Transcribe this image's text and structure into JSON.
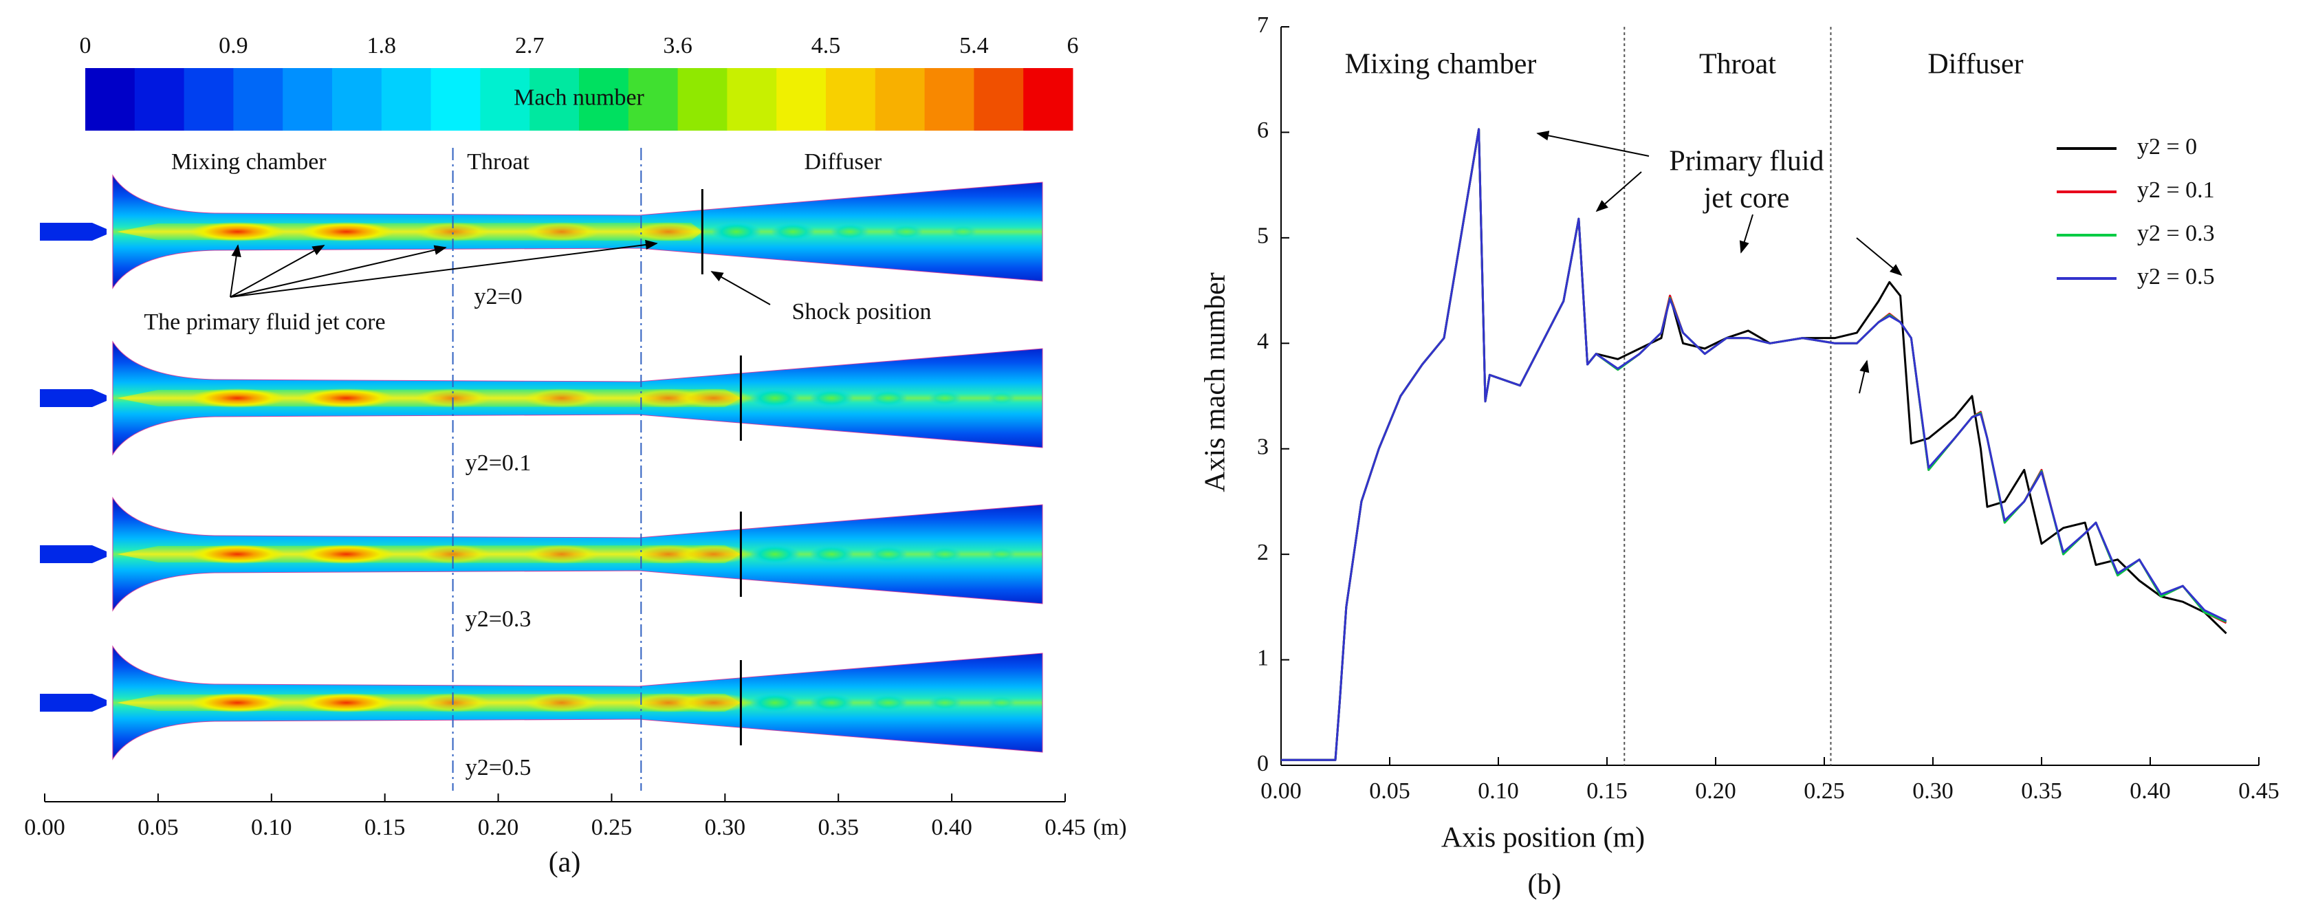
{
  "panel_a": {
    "colorbar": {
      "title": "Mach number",
      "ticks": [
        0,
        0.9,
        1.8,
        2.7,
        3.6,
        4.5,
        5.4,
        6
      ],
      "lim": [
        0,
        6
      ],
      "colors": [
        "#0000c8",
        "#0018e0",
        "#0040f0",
        "#0068f8",
        "#0090ff",
        "#00b0ff",
        "#00d0ff",
        "#00f0ff",
        "#00f0d0",
        "#00e8a0",
        "#00e060",
        "#40e030",
        "#90e800",
        "#c8f000",
        "#f0f000",
        "#f8d000",
        "#f8b000",
        "#f88800",
        "#f05000",
        "#f00000"
      ]
    },
    "region_labels": [
      "Mixing chamber",
      "Throat",
      "Diffuser"
    ],
    "jet_core_label": "The primary fluid jet core",
    "shock_label": "Shock position",
    "case_labels": [
      "y2=0",
      "y2=0.1",
      "y2=0.3",
      "y2=0.5"
    ],
    "axis": {
      "xlim": [
        0,
        0.45
      ],
      "ticks": [
        {
          "value": 0,
          "label": "0.00"
        },
        {
          "value": 0.05,
          "label": "0.05"
        },
        {
          "value": 0.1,
          "label": "0.10"
        },
        {
          "value": 0.15,
          "label": "0.15"
        },
        {
          "value": 0.2,
          "label": "0.20"
        },
        {
          "value": 0.25,
          "label": "0.25"
        },
        {
          "value": 0.3,
          "label": "0.30"
        },
        {
          "value": 0.35,
          "label": "0.35"
        },
        {
          "value": 0.4,
          "label": "0.40"
        },
        {
          "value": 0.45,
          "label": "0.45"
        }
      ],
      "unit": "(m)"
    },
    "caption": "(a)"
  },
  "chart_data": {
    "type": "line",
    "x_label": "Axis position (m)",
    "y_label": "Axis mach number",
    "caption": "(b)",
    "region_labels": [
      "Mixing chamber",
      "Throat",
      "Diffuser"
    ],
    "region_boundaries": [
      0.158,
      0.253
    ],
    "annotation": [
      "Primary fluid",
      "jet core"
    ],
    "xlim": [
      0,
      0.45
    ],
    "ylim": [
      0,
      7
    ],
    "xticks": [
      {
        "value": 0,
        "label": "0.00"
      },
      {
        "value": 0.05,
        "label": "0.05"
      },
      {
        "value": 0.1,
        "label": "0.10"
      },
      {
        "value": 0.15,
        "label": "0.15"
      },
      {
        "value": 0.2,
        "label": "0.20"
      },
      {
        "value": 0.25,
        "label": "0.25"
      },
      {
        "value": 0.3,
        "label": "0.30"
      },
      {
        "value": 0.35,
        "label": "0.35"
      },
      {
        "value": 0.4,
        "label": "0.40"
      },
      {
        "value": 0.45,
        "label": "0.45"
      }
    ],
    "yticks": [
      0,
      1,
      2,
      3,
      4,
      5,
      6,
      7
    ],
    "legend": "upper right",
    "x": [
      0,
      0.025,
      0.027,
      0.03,
      0.037,
      0.045,
      0.055,
      0.065,
      0.075,
      0.091,
      0.094,
      0.096,
      0.11,
      0.12,
      0.13,
      0.137,
      0.141,
      0.145,
      0.155,
      0.165,
      0.175,
      0.179,
      0.185,
      0.195,
      0.205,
      0.215,
      0.225,
      0.24,
      0.255,
      0.265,
      0.275,
      0.28,
      0.285,
      0.29,
      0.298,
      0.31,
      0.318,
      0.322,
      0.325,
      0.333,
      0.342,
      0.35,
      0.36,
      0.37,
      0.375,
      0.385,
      0.395,
      0.405,
      0.415,
      0.425,
      0.435
    ],
    "series": [
      {
        "name": "y2 = 0",
        "color": "#000000",
        "values": [
          0.05,
          0.05,
          0.6,
          1.5,
          2.5,
          3.0,
          3.5,
          3.8,
          4.05,
          6.03,
          3.45,
          3.7,
          3.6,
          4.0,
          4.4,
          5.18,
          3.8,
          3.9,
          3.85,
          3.95,
          4.05,
          4.45,
          4.0,
          3.95,
          4.05,
          4.12,
          4.0,
          4.05,
          4.05,
          4.1,
          4.4,
          4.58,
          4.45,
          3.05,
          3.1,
          3.3,
          3.5,
          3.0,
          2.45,
          2.5,
          2.8,
          2.1,
          2.25,
          2.3,
          1.9,
          1.95,
          1.75,
          1.6,
          1.55,
          1.45,
          1.25
        ]
      },
      {
        "name": "y2 = 0.1",
        "color": "#e8001c",
        "values": [
          0.05,
          0.05,
          0.6,
          1.5,
          2.5,
          3.0,
          3.5,
          3.8,
          4.05,
          6.03,
          3.45,
          3.7,
          3.6,
          4.0,
          4.4,
          5.18,
          3.8,
          3.9,
          3.75,
          3.9,
          4.1,
          4.45,
          4.1,
          3.9,
          4.05,
          4.05,
          4.0,
          4.05,
          4.0,
          4.0,
          4.2,
          4.28,
          4.2,
          4.05,
          2.8,
          3.1,
          3.3,
          3.35,
          3.1,
          2.3,
          2.5,
          2.8,
          2.0,
          2.2,
          2.3,
          1.8,
          1.95,
          1.6,
          1.7,
          1.45,
          1.35
        ]
      },
      {
        "name": "y2 = 0.3",
        "color": "#00cc44",
        "values": [
          0.05,
          0.05,
          0.6,
          1.5,
          2.5,
          3.0,
          3.5,
          3.8,
          4.05,
          6.03,
          3.45,
          3.7,
          3.6,
          4.0,
          4.4,
          5.18,
          3.8,
          3.9,
          3.75,
          3.9,
          4.1,
          4.43,
          4.1,
          3.9,
          4.05,
          4.05,
          4.0,
          4.05,
          4.0,
          4.0,
          4.2,
          4.27,
          4.2,
          4.05,
          2.8,
          3.1,
          3.3,
          3.34,
          3.1,
          2.3,
          2.5,
          2.79,
          2.0,
          2.2,
          2.3,
          1.8,
          1.95,
          1.6,
          1.7,
          1.45,
          1.36
        ]
      },
      {
        "name": "y2 = 0.5",
        "color": "#3333cc",
        "values": [
          0.05,
          0.05,
          0.6,
          1.5,
          2.5,
          3.0,
          3.5,
          3.8,
          4.05,
          6.03,
          3.45,
          3.7,
          3.6,
          4.0,
          4.4,
          5.18,
          3.8,
          3.9,
          3.76,
          3.9,
          4.1,
          4.42,
          4.1,
          3.9,
          4.05,
          4.05,
          4.0,
          4.05,
          4.0,
          4.0,
          4.2,
          4.26,
          4.2,
          4.05,
          2.82,
          3.1,
          3.3,
          3.33,
          3.1,
          2.32,
          2.5,
          2.78,
          2.02,
          2.2,
          2.3,
          1.82,
          1.95,
          1.62,
          1.7,
          1.47,
          1.37
        ]
      }
    ]
  }
}
